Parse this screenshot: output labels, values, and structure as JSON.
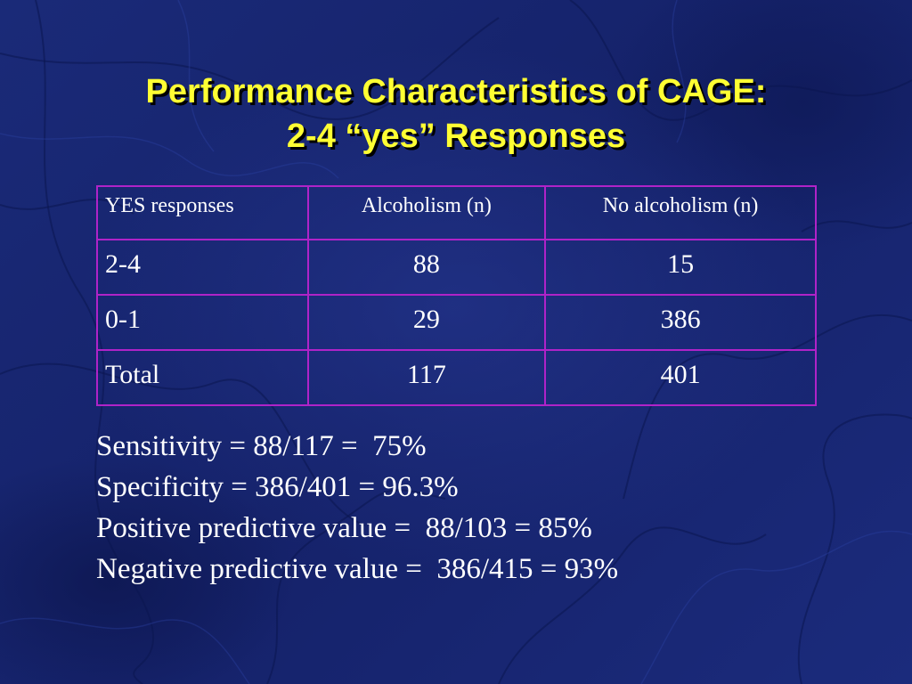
{
  "slide": {
    "title_line1": "Performance Characteristics of CAGE:",
    "title_line2": "2-4 “yes” Responses"
  },
  "table": {
    "headers": [
      "YES responses",
      "Alcoholism (n)",
      "No alcoholism (n)"
    ],
    "rows": [
      [
        "2-4",
        "88",
        "15"
      ],
      [
        "0-1",
        "29",
        "386"
      ],
      [
        "Total",
        "117",
        "401"
      ]
    ]
  },
  "stats": {
    "sensitivity": "Sensitivity = 88/117 =  75%",
    "specificity": "Specificity = 386/401 = 96.3%",
    "ppv": "Positive predictive value =  88/103 = 85%",
    "npv": "Negative predictive value =  386/415 = 93%"
  },
  "colors": {
    "background": "#17256e",
    "title": "#ffff33",
    "table_border": "#b023c8",
    "text": "#ffffff"
  }
}
